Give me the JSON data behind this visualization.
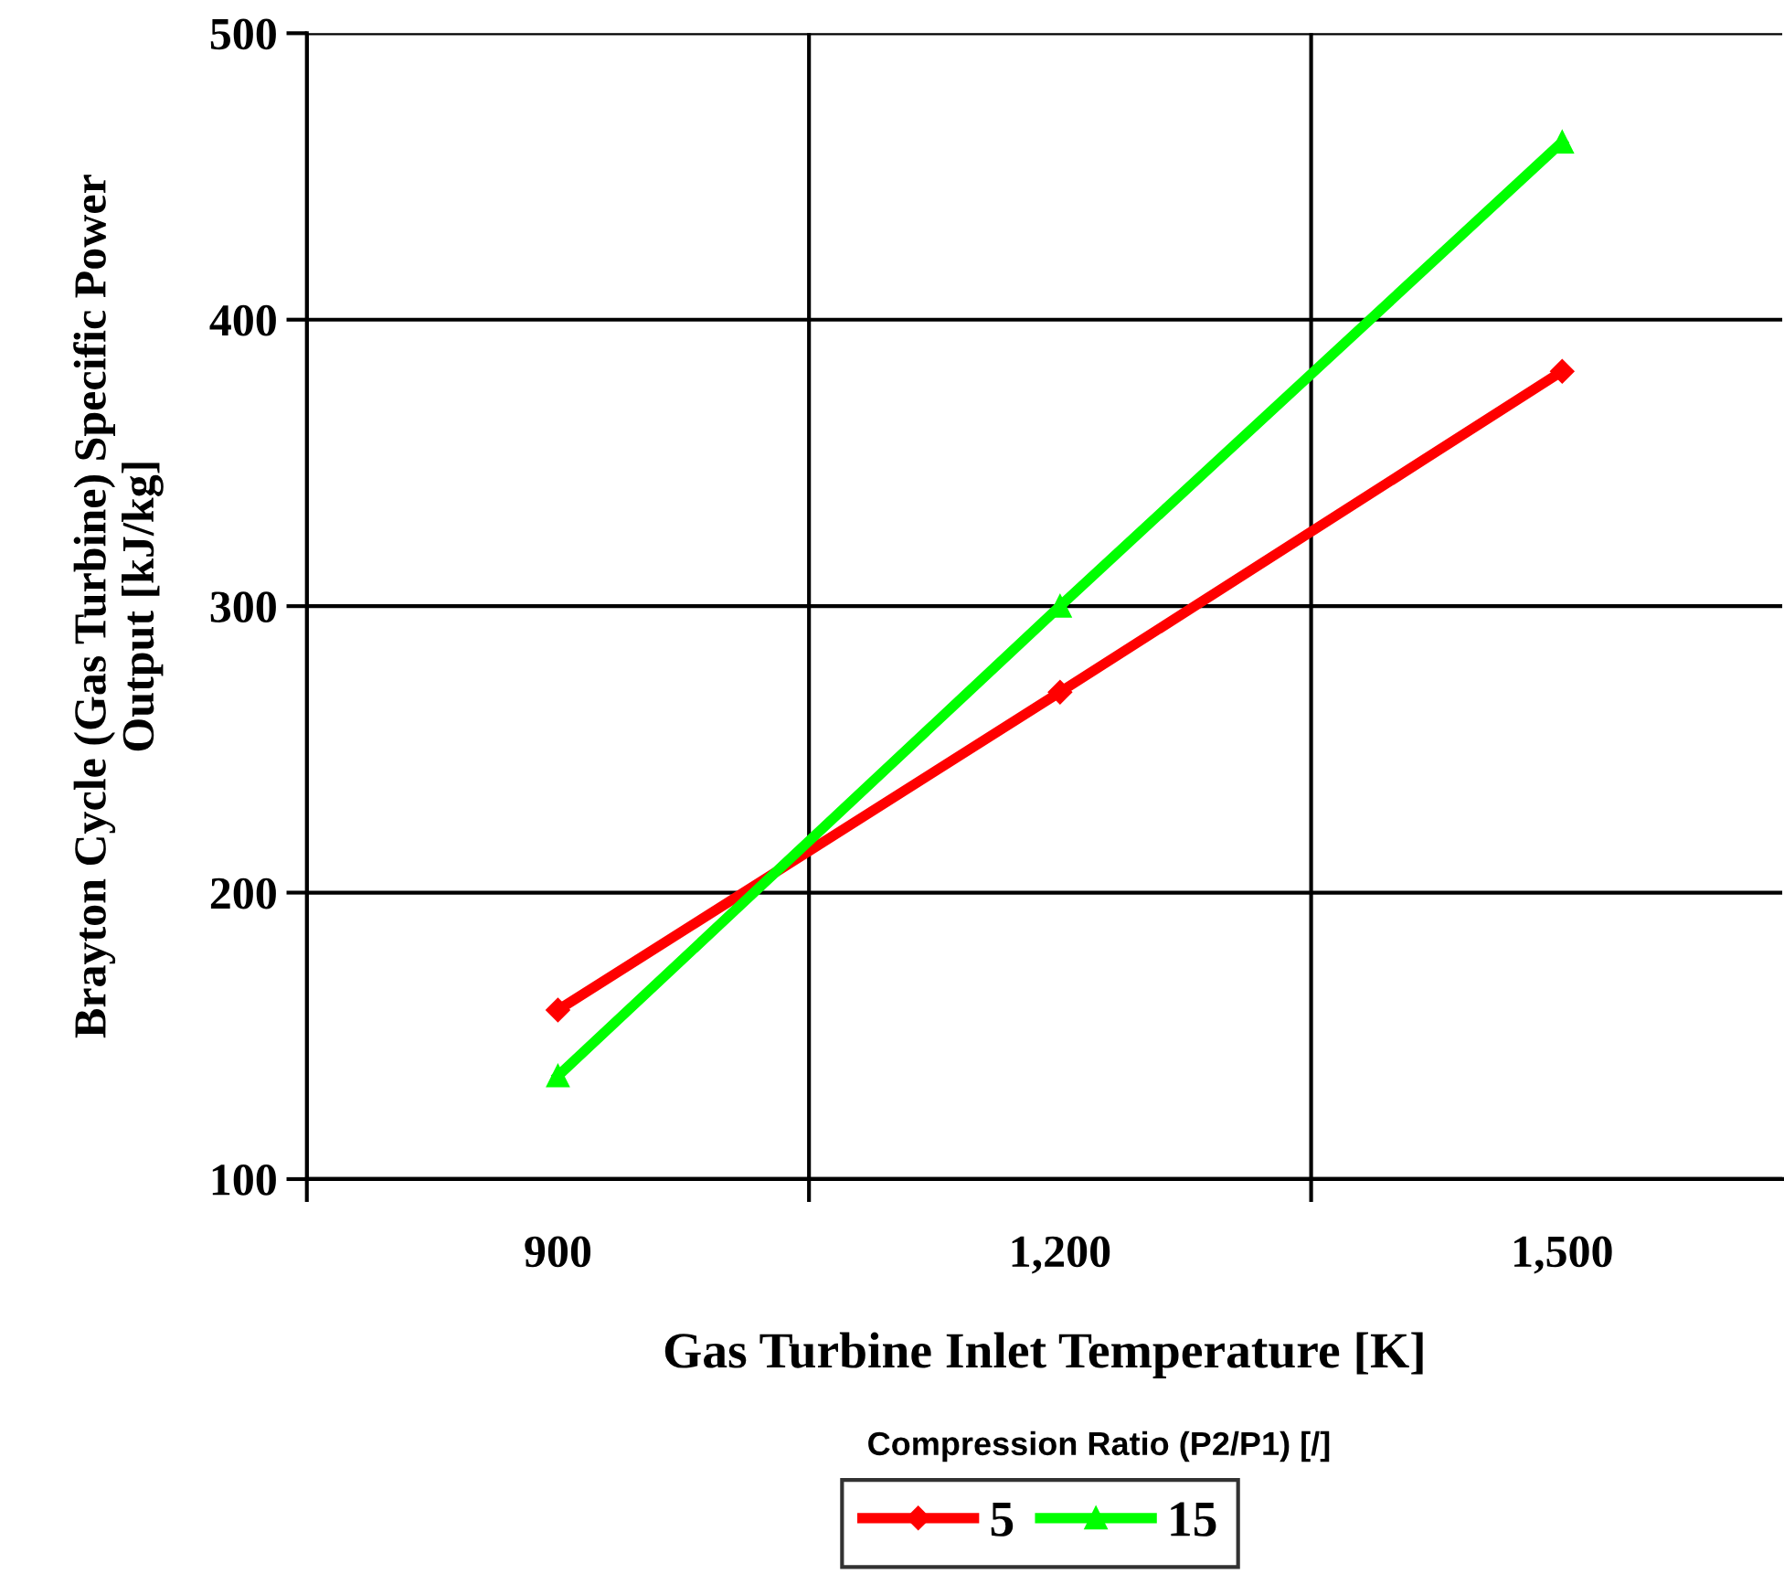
{
  "chart_data": {
    "type": "line",
    "xlabel": "Gas Turbine Inlet Temperature [K]",
    "ylabel": "Brayton Cycle (Gas Turbine) Specific Power\nOutput [kJ/kg]",
    "legend_title": "Compression Ratio (P2/P1) [/]",
    "categories": [
      "900",
      "1,200",
      "1,500"
    ],
    "series": [
      {
        "name": "5",
        "color": "#ff0000",
        "marker": "diamond",
        "values": [
          159,
          270,
          382
        ]
      },
      {
        "name": "15",
        "color": "#00ff00",
        "marker": "triangle",
        "values": [
          136,
          300,
          462
        ]
      }
    ],
    "ylim": [
      100,
      500
    ],
    "yticks": [
      100,
      200,
      300,
      400,
      500
    ],
    "grid": true,
    "legend": "bottom",
    "line_style": "solid"
  }
}
